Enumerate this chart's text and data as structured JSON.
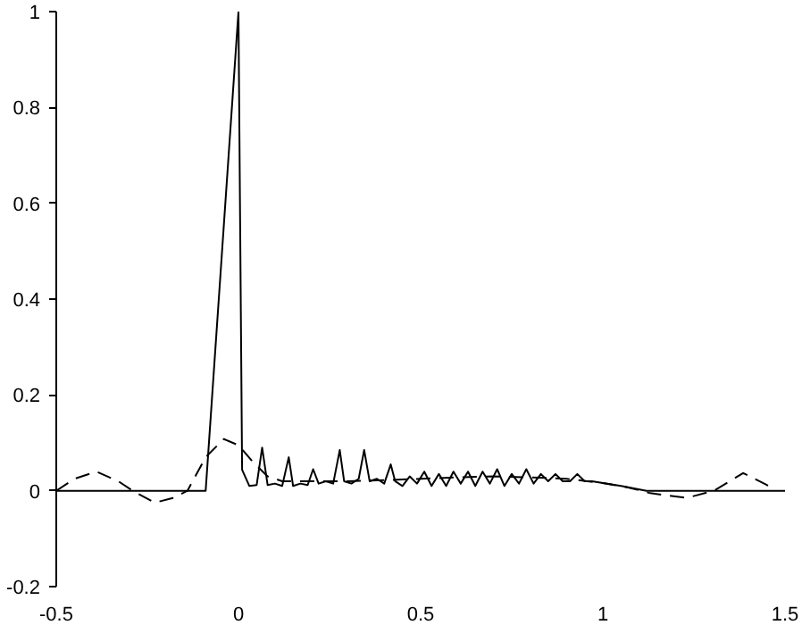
{
  "chart_data": {
    "type": "line",
    "xlim": [
      -0.5,
      1.5
    ],
    "ylim": [
      -0.2,
      1
    ],
    "xticks": [
      -0.5,
      0,
      0.5,
      1,
      1.5
    ],
    "yticks": [
      -0.2,
      0,
      0.2,
      0.4,
      0.6,
      0.8,
      1
    ],
    "grid": false,
    "marker": "none",
    "series": [
      {
        "color": "#000000",
        "line_style": "solid",
        "x": [
          -0.5,
          -0.09,
          0,
          0.01,
          0.03,
          0.05,
          0.065,
          0.08,
          0.1,
          0.12,
          0.138,
          0.15,
          0.17,
          0.19,
          0.205,
          0.22,
          0.24,
          0.26,
          0.278,
          0.29,
          0.31,
          0.33,
          0.345,
          0.36,
          0.38,
          0.4,
          0.418,
          0.43,
          0.45,
          0.47,
          0.49,
          0.51,
          0.53,
          0.55,
          0.57,
          0.59,
          0.61,
          0.63,
          0.65,
          0.67,
          0.69,
          0.71,
          0.73,
          0.75,
          0.77,
          0.79,
          0.81,
          0.83,
          0.85,
          0.87,
          0.89,
          0.91,
          0.93,
          0.95,
          0.97,
          1.05,
          1.12,
          1.5
        ],
        "values": [
          0,
          0,
          1,
          0.044,
          0.01,
          0.012,
          0.09,
          0.012,
          0.015,
          0.01,
          0.07,
          0.01,
          0.015,
          0.012,
          0.045,
          0.015,
          0.02,
          0.015,
          0.085,
          0.02,
          0.015,
          0.025,
          0.085,
          0.02,
          0.025,
          0.015,
          0.055,
          0.02,
          0.01,
          0.03,
          0.015,
          0.04,
          0.01,
          0.035,
          0.01,
          0.04,
          0.015,
          0.04,
          0.01,
          0.04,
          0.015,
          0.045,
          0.01,
          0.035,
          0.015,
          0.045,
          0.015,
          0.035,
          0.02,
          0.035,
          0.02,
          0.02,
          0.035,
          0.02,
          0.02,
          0.01,
          0,
          0
        ]
      },
      {
        "color": "#000000",
        "line_style": "dashed",
        "x": [
          -0.5,
          -0.45,
          -0.39,
          -0.33,
          -0.29,
          -0.23,
          -0.18,
          -0.14,
          -0.09,
          -0.04,
          0,
          0.04,
          0.08,
          0.12,
          0.2,
          0.3,
          0.4,
          0.5,
          0.6,
          0.7,
          0.8,
          0.9,
          1.0,
          1.07,
          1.13,
          1.23,
          1.305,
          1.385,
          1.45,
          1.47
        ],
        "values": [
          0,
          0.025,
          0.04,
          0.02,
          0,
          -0.025,
          -0.015,
          0,
          0.07,
          0.108,
          0.095,
          0.06,
          0.03,
          0.02,
          0.02,
          0.02,
          0.022,
          0.025,
          0.028,
          0.03,
          0.028,
          0.025,
          0.016,
          0.007,
          -0.005,
          -0.015,
          0,
          0.037,
          0.012,
          0.005
        ]
      }
    ]
  }
}
